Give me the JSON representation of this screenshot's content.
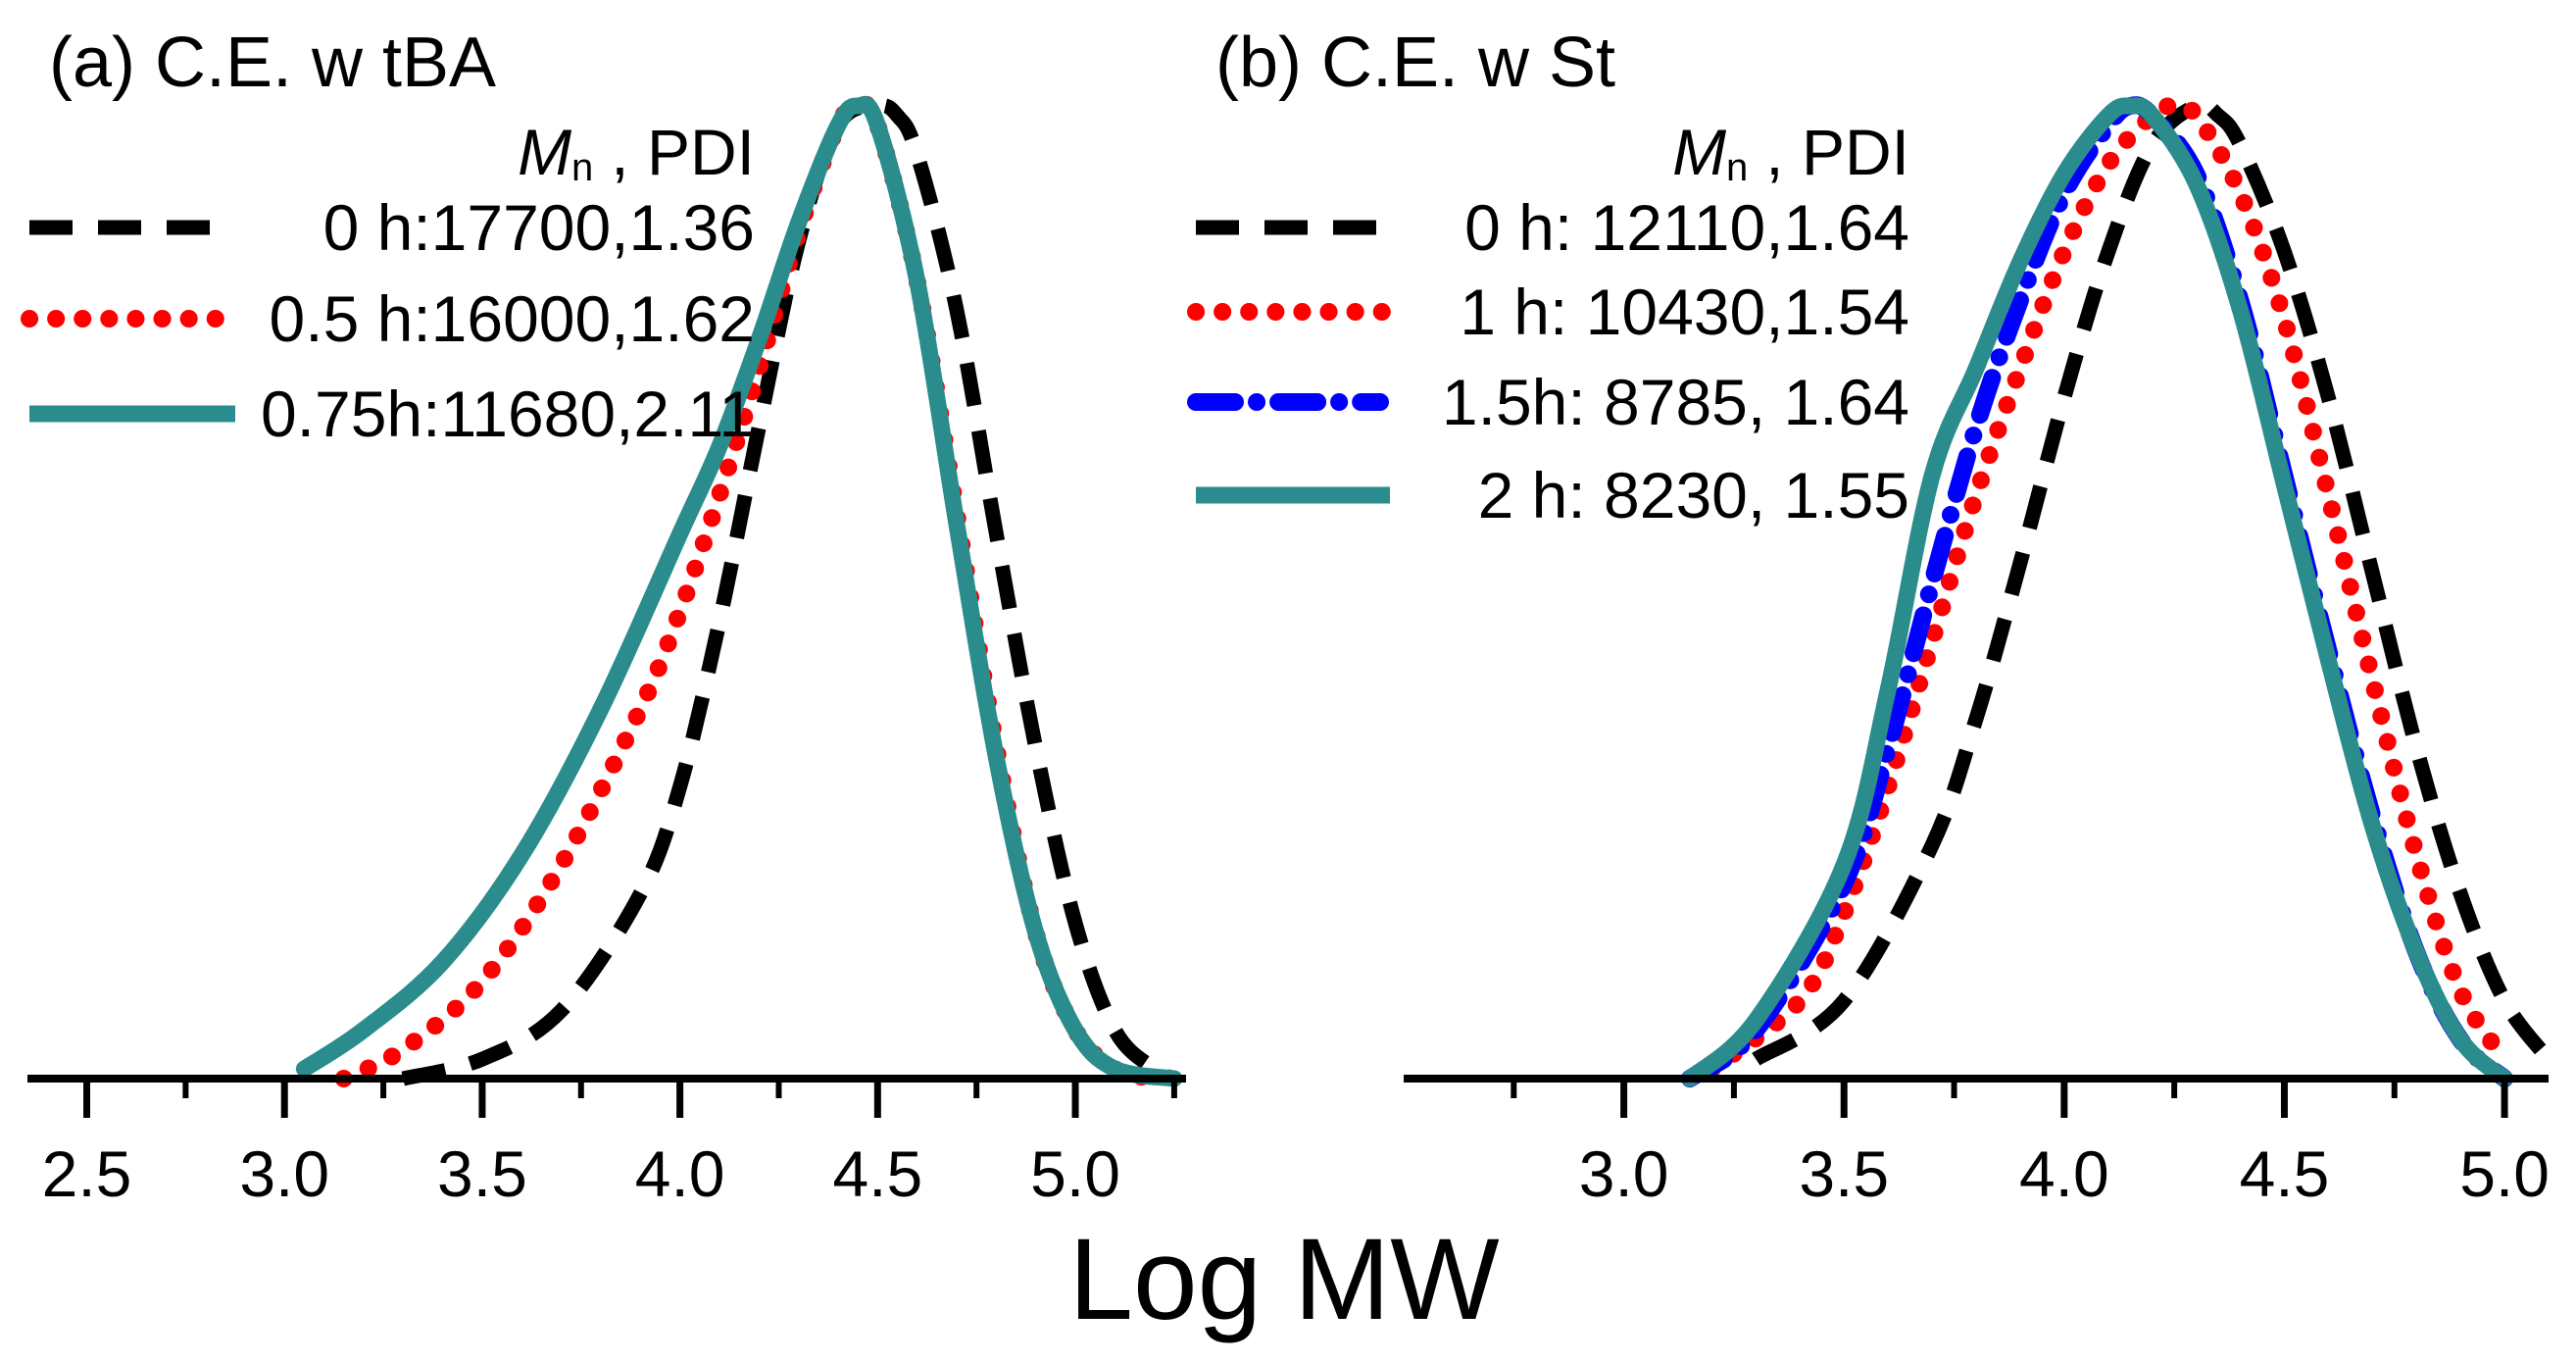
{
  "colors": {
    "black": "#000000",
    "red": "#ff0000",
    "blue": "#0000ff",
    "teal": "#2a8c8c",
    "axis": "#000000"
  },
  "xlabel": "Log MW",
  "chart_data": [
    {
      "type": "line",
      "id": "a",
      "title": "(a) C.E. w tBA",
      "xlabel": "Log MW",
      "ylabel": "",
      "xlim": [
        2.35,
        5.28
      ],
      "ylim": [
        0,
        1
      ],
      "x_ticks": [
        2.5,
        3.0,
        3.5,
        4.0,
        4.5,
        5.0
      ],
      "x_tick_labels": [
        "2.5",
        "3.0",
        "3.5",
        "4.0",
        "4.5",
        "5.0"
      ],
      "legend_header": {
        "symbol": "M",
        "subscript": "n",
        "rest": ", PDI"
      },
      "series": [
        {
          "name": "0  h:17700,1.36",
          "style": "dashed",
          "color_key": "black",
          "x": [
            3.3,
            3.5,
            3.7,
            3.9,
            4.0,
            4.1,
            4.2,
            4.3,
            4.4,
            4.5,
            4.55,
            4.6,
            4.7,
            4.8,
            4.9,
            5.0,
            5.1,
            5.2,
            5.25
          ],
          "y": [
            0.0,
            0.02,
            0.07,
            0.19,
            0.3,
            0.47,
            0.67,
            0.86,
            0.98,
            1.0,
            0.99,
            0.95,
            0.79,
            0.56,
            0.34,
            0.16,
            0.05,
            0.01,
            0.0
          ]
        },
        {
          "name": "0.5 h:16000,1.62",
          "style": "dotted",
          "color_key": "red",
          "x": [
            3.15,
            3.3,
            3.5,
            3.7,
            3.9,
            4.0,
            4.1,
            4.2,
            4.3,
            4.4,
            4.45,
            4.5,
            4.6,
            4.7,
            4.8,
            4.9,
            5.0,
            5.1,
            5.2
          ],
          "y": [
            0.0,
            0.03,
            0.1,
            0.22,
            0.38,
            0.48,
            0.6,
            0.73,
            0.87,
            0.98,
            1.0,
            0.98,
            0.82,
            0.58,
            0.34,
            0.15,
            0.05,
            0.01,
            0.0
          ]
        },
        {
          "name": "0.75h:11680,2.11",
          "style": "solid",
          "color_key": "teal",
          "x": [
            3.05,
            3.2,
            3.4,
            3.6,
            3.8,
            4.0,
            4.1,
            4.2,
            4.3,
            4.4,
            4.45,
            4.5,
            4.6,
            4.7,
            4.8,
            4.9,
            5.0,
            5.1,
            5.25
          ],
          "y": [
            0.01,
            0.05,
            0.12,
            0.23,
            0.38,
            0.56,
            0.65,
            0.76,
            0.88,
            0.98,
            1.0,
            0.98,
            0.82,
            0.57,
            0.33,
            0.15,
            0.05,
            0.01,
            0.0
          ]
        }
      ]
    },
    {
      "type": "line",
      "id": "b",
      "title": "(b) C.E. w St",
      "xlabel": "Log MW",
      "ylabel": "",
      "xlim": [
        2.5,
        5.1
      ],
      "ylim": [
        0,
        1
      ],
      "x_ticks": [
        3.0,
        3.5,
        4.0,
        4.5,
        5.0
      ],
      "x_tick_labels": [
        "3.0",
        "3.5",
        "4.0",
        "4.5",
        "5.0"
      ],
      "legend_header": {
        "symbol": "M",
        "subscript": "n",
        "rest": ", PDI"
      },
      "series": [
        {
          "name": "0 h: 12110,1.64",
          "style": "dashed",
          "color_key": "black",
          "x": [
            3.3,
            3.5,
            3.7,
            3.8,
            3.9,
            4.0,
            4.1,
            4.2,
            4.3,
            4.35,
            4.4,
            4.5,
            4.6,
            4.7,
            4.8,
            4.9,
            5.0,
            5.1
          ],
          "y": [
            0.02,
            0.08,
            0.24,
            0.37,
            0.53,
            0.7,
            0.85,
            0.96,
            1.0,
            0.99,
            0.96,
            0.85,
            0.7,
            0.52,
            0.34,
            0.19,
            0.08,
            0.02
          ]
        },
        {
          "name": "1 h: 10430,1.54",
          "style": "dotted",
          "color_key": "red",
          "x": [
            3.2,
            3.4,
            3.5,
            3.6,
            3.7,
            3.8,
            3.9,
            4.0,
            4.1,
            4.2,
            4.25,
            4.3,
            4.4,
            4.5,
            4.6,
            4.7,
            4.8,
            4.9,
            5.0
          ],
          "y": [
            0.01,
            0.08,
            0.17,
            0.3,
            0.45,
            0.6,
            0.73,
            0.85,
            0.94,
            0.99,
            1.0,
            0.99,
            0.91,
            0.78,
            0.6,
            0.41,
            0.23,
            0.09,
            0.02
          ]
        },
        {
          "name": "1.5h: 8785,  1.64",
          "style": "dashdot",
          "color_key": "blue",
          "x": [
            3.15,
            3.3,
            3.5,
            3.6,
            3.7,
            3.8,
            3.9,
            4.0,
            4.1,
            4.15,
            4.2,
            4.3,
            4.4,
            4.5,
            4.6,
            4.7,
            4.8,
            4.9,
            5.0
          ],
          "y": [
            0.0,
            0.05,
            0.2,
            0.34,
            0.51,
            0.67,
            0.8,
            0.91,
            0.98,
            1.0,
            0.99,
            0.93,
            0.8,
            0.62,
            0.44,
            0.27,
            0.13,
            0.04,
            0.0
          ]
        },
        {
          "name": "2 h: 8230,  1.55",
          "style": "solid",
          "color_key": "teal",
          "x": [
            3.15,
            3.3,
            3.5,
            3.6,
            3.7,
            3.8,
            3.9,
            4.0,
            4.1,
            4.15,
            4.2,
            4.3,
            4.4,
            4.5,
            4.6,
            4.7,
            4.8,
            4.9,
            5.0
          ],
          "y": [
            0.0,
            0.06,
            0.22,
            0.4,
            0.62,
            0.73,
            0.84,
            0.93,
            0.99,
            1.0,
            0.99,
            0.92,
            0.79,
            0.61,
            0.43,
            0.26,
            0.13,
            0.04,
            0.0
          ]
        }
      ]
    }
  ]
}
